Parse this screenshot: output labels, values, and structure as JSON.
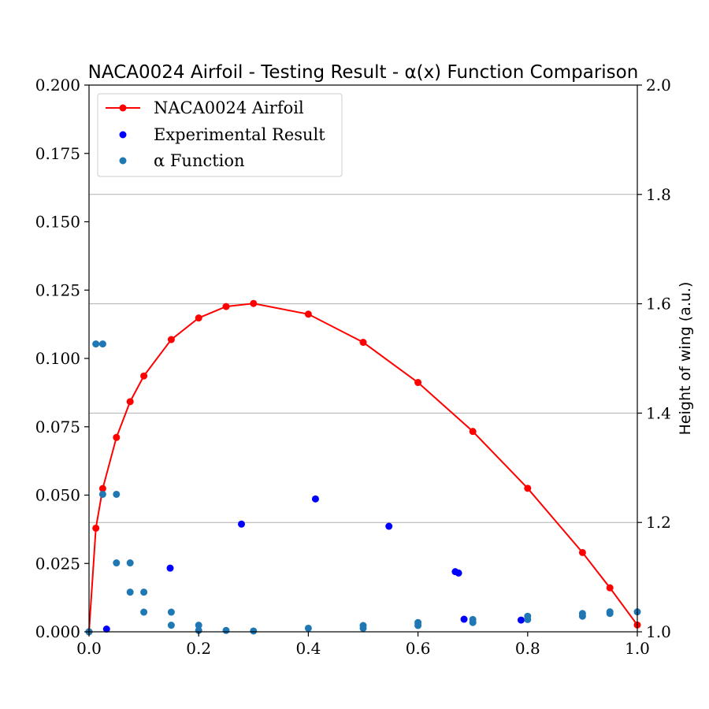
{
  "chart_data": {
    "type": "scatter",
    "title": "NACA0024 Airfoil - Testing Result - α(x) Function Comparison",
    "xlim": [
      0.0,
      1.0
    ],
    "ylim": [
      0.0,
      0.2
    ],
    "y2lim": [
      1.0,
      2.0
    ],
    "xticks": [
      "0.0",
      "0.2",
      "0.4",
      "0.6",
      "0.8",
      "1.0"
    ],
    "yticks": [
      "0.000",
      "0.025",
      "0.050",
      "0.075",
      "0.100",
      "0.125",
      "0.150",
      "0.175",
      "0.200"
    ],
    "y2ticks": [
      "1.0",
      "1.2",
      "1.4",
      "1.6",
      "1.8",
      "2.0"
    ],
    "y2label": "Height of wing (a.u.)",
    "grid": "right axis horizontal lines",
    "legend_position": "upper-left",
    "series": [
      {
        "name": "NACA0024 Airfoil",
        "kind": "line-marker",
        "color": "#ff0000",
        "x": [
          0.0,
          0.0125,
          0.025,
          0.05,
          0.075,
          0.1,
          0.15,
          0.2,
          0.25,
          0.3,
          0.4,
          0.5,
          0.6,
          0.7,
          0.8,
          0.9,
          0.95,
          1.0
        ],
        "y": [
          0.0,
          0.0379,
          0.0524,
          0.0711,
          0.0842,
          0.0936,
          0.1069,
          0.1148,
          0.119,
          0.1201,
          0.1162,
          0.1059,
          0.0912,
          0.0733,
          0.0525,
          0.029,
          0.0161,
          0.0025
        ]
      },
      {
        "name": "Experimental Result",
        "kind": "scatter",
        "color": "#0000ff",
        "x": [
          0.032,
          0.148,
          0.278,
          0.413,
          0.547,
          0.668,
          0.674,
          0.684,
          0.788
        ],
        "y": [
          0.001,
          0.0233,
          0.0394,
          0.0486,
          0.0386,
          0.022,
          0.0215,
          0.0046,
          0.0043
        ]
      },
      {
        "name": "α Function",
        "kind": "scatter",
        "color": "#1f77b4",
        "x": [
          0.0,
          0.0125,
          0.025,
          0.025,
          0.05,
          0.05,
          0.075,
          0.075,
          0.1,
          0.1,
          0.15,
          0.15,
          0.2,
          0.2,
          0.25,
          0.3,
          0.4,
          0.5,
          0.5,
          0.6,
          0.6,
          0.7,
          0.7,
          0.8,
          0.8,
          0.9,
          0.9,
          0.95,
          0.95,
          1.0
        ],
        "y": [
          0.0,
          0.1053,
          0.1053,
          0.0503,
          0.0503,
          0.0252,
          0.0252,
          0.0145,
          0.0145,
          0.0072,
          0.0072,
          0.0024,
          0.0024,
          0.0005,
          0.0005,
          0.0003,
          0.0013,
          0.0013,
          0.0023,
          0.0023,
          0.0034,
          0.0034,
          0.0045,
          0.0045,
          0.0057,
          0.0057,
          0.0067,
          0.0067,
          0.0073,
          0.0073
        ]
      }
    ]
  }
}
